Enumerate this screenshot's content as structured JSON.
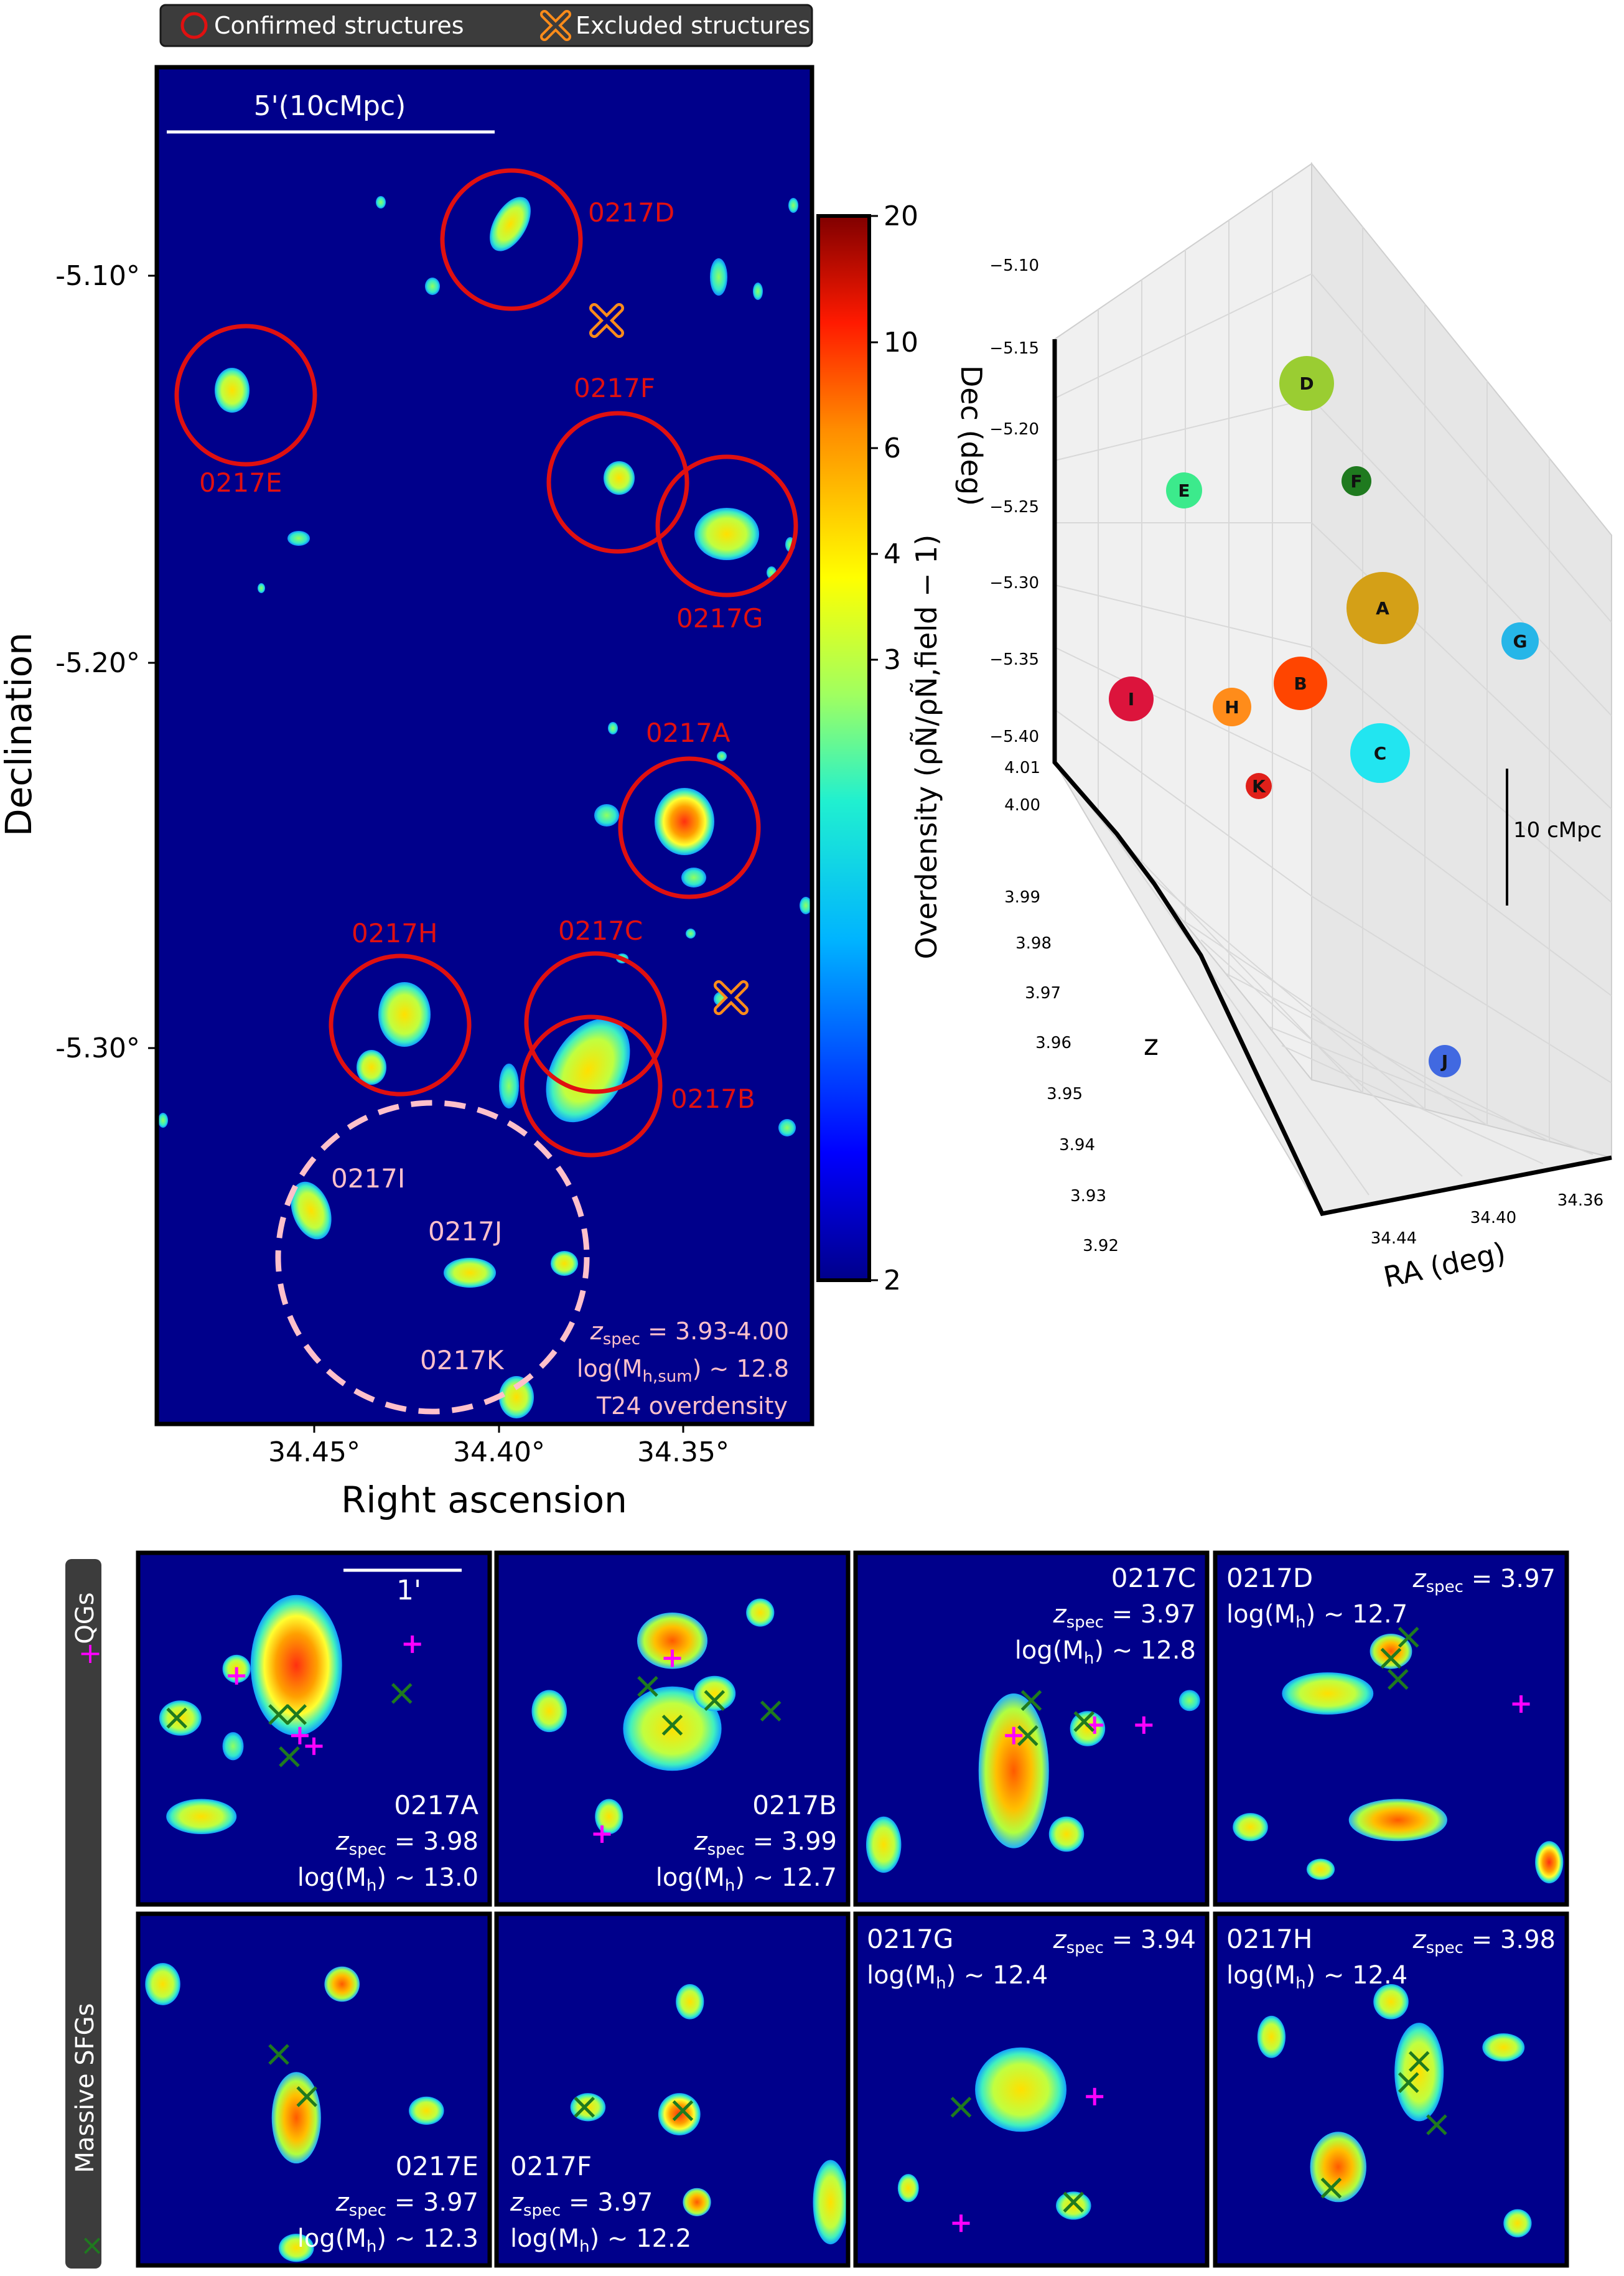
{
  "legend": {
    "confirmed": "Confirmed structures",
    "excluded": "Excluded structures"
  },
  "map": {
    "scalebar_label": "5'(10cMpc)",
    "ylabel": "Declination",
    "xlabel": "Right ascension",
    "yticks": [
      "-5.10°",
      "-5.20°",
      "-5.30°"
    ],
    "xticks": [
      "34.45°",
      "34.40°",
      "34.35°"
    ],
    "labels": {
      "D": "0217D",
      "E": "0217E",
      "F": "0217F",
      "G": "0217G",
      "A": "0217A",
      "H": "0217H",
      "C": "0217C",
      "B": "0217B",
      "I": "0217I",
      "J": "0217J",
      "K": "0217K"
    },
    "annot_z": "z",
    "annot_z_sub": "spec",
    "annot_z_val": " = 3.93-4.00",
    "annot_mass_pre": "log(M",
    "annot_mass_sub": "h,sum",
    "annot_mass_post": ") ~ 12.8",
    "annot_t24": "T24 overdensity"
  },
  "colorbar": {
    "ticks": [
      "20",
      "10",
      "6",
      "4",
      "3",
      "2"
    ],
    "label": "Overdensity (ρÑ/ρÑ,field − 1)"
  },
  "plot3d": {
    "dec_label": "Dec (deg)",
    "dec_ticks": [
      "−5.10",
      "−5.15",
      "−5.20",
      "−5.25",
      "−5.30",
      "−5.35",
      "−5.40"
    ],
    "z_label": "z",
    "z_ticks": [
      "4.01",
      "4.00",
      "3.99",
      "3.98",
      "3.97",
      "3.96",
      "3.95",
      "3.94",
      "3.93",
      "3.92"
    ],
    "ra_label": "RA (deg)",
    "ra_ticks": [
      "34.44",
      "34.40",
      "34.36"
    ],
    "scale_label": "10 cMpc",
    "points": [
      {
        "id": "D",
        "color": "#9acd32"
      },
      {
        "id": "E",
        "color": "#3cea8c"
      },
      {
        "id": "F",
        "color": "#1f7a1f"
      },
      {
        "id": "A",
        "color": "#d4a017"
      },
      {
        "id": "G",
        "color": "#26b6e8"
      },
      {
        "id": "I",
        "color": "#dc143c"
      },
      {
        "id": "H",
        "color": "#ff8c1a"
      },
      {
        "id": "B",
        "color": "#ff4500"
      },
      {
        "id": "C",
        "color": "#22e5f0"
      },
      {
        "id": "K",
        "color": "#e0201a"
      },
      {
        "id": "J",
        "color": "#4169e1"
      }
    ]
  },
  "side_labels": {
    "qg": "QGs",
    "sfg": "Massive SFGs",
    "qg_marker": "+",
    "sfg_marker": "×"
  },
  "panels": [
    {
      "name": "0217A",
      "z": "3.98",
      "mh": "13.0"
    },
    {
      "name": "0217B",
      "z": "3.99",
      "mh": "12.7"
    },
    {
      "name": "0217C",
      "z": "3.97",
      "mh": "12.8"
    },
    {
      "name": "0217D",
      "z": "3.97",
      "mh": "12.7"
    },
    {
      "name": "0217E",
      "z": "3.97",
      "mh": "12.3"
    },
    {
      "name": "0217F",
      "z": "3.97",
      "mh": "12.2"
    },
    {
      "name": "0217G",
      "z": "3.94",
      "mh": "12.4"
    },
    {
      "name": "0217H",
      "z": "3.98",
      "mh": "12.4"
    }
  ],
  "panel_text": {
    "scalebar": "1'",
    "z": "z",
    "z_sub": "spec",
    "eq": " = ",
    "mh_pre": "log(M",
    "mh_sub": "h",
    "mh_post": ") ~ "
  },
  "colors": {
    "background": "#00008b",
    "confirmed": "#e01010",
    "excluded": "#ff8c1a",
    "dashed": "#ffc0cb",
    "qg_marker": "#ff00ff",
    "sfg_marker": "#1f7a1f"
  }
}
